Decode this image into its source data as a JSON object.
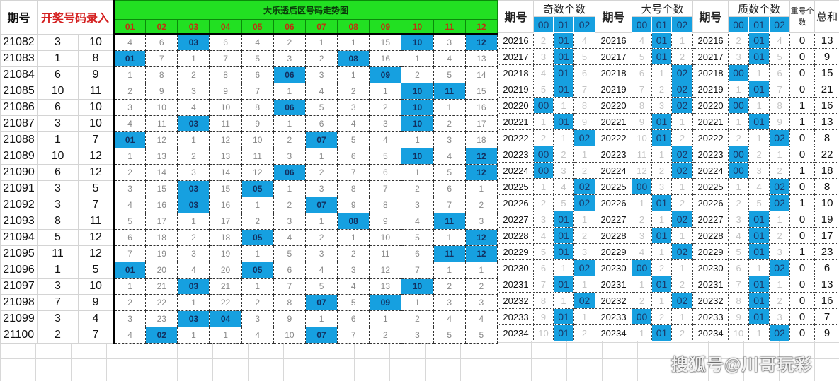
{
  "left": {
    "period_header": "期号",
    "draw_header": "开奖号码录入",
    "title": "大乐透后区号码走势图",
    "columns": [
      "01",
      "02",
      "03",
      "04",
      "05",
      "06",
      "07",
      "08",
      "09",
      "10",
      "11",
      "12"
    ],
    "rows": [
      {
        "period": "21082",
        "a": "3",
        "b": "10",
        "trend": [
          "4",
          "6",
          "03",
          "6",
          "4",
          "2",
          "1",
          "1",
          "15",
          "10",
          "3",
          "12"
        ]
      },
      {
        "period": "21083",
        "a": "1",
        "b": "8",
        "trend": [
          "01",
          "7",
          "1",
          "7",
          "5",
          "3",
          "2",
          "08",
          "16",
          "1",
          "4",
          "13"
        ]
      },
      {
        "period": "21084",
        "a": "6",
        "b": "9",
        "trend": [
          "1",
          "8",
          "2",
          "8",
          "6",
          "06",
          "3",
          "1",
          "09",
          "2",
          "5",
          "14"
        ]
      },
      {
        "period": "21085",
        "a": "10",
        "b": "11",
        "trend": [
          "2",
          "9",
          "3",
          "9",
          "7",
          "1",
          "4",
          "2",
          "1",
          "10",
          "11",
          "15"
        ]
      },
      {
        "period": "21086",
        "a": "6",
        "b": "10",
        "trend": [
          "3",
          "10",
          "4",
          "10",
          "8",
          "06",
          "5",
          "3",
          "2",
          "10",
          "1",
          "16"
        ]
      },
      {
        "period": "21087",
        "a": "3",
        "b": "10",
        "trend": [
          "4",
          "11",
          "03",
          "11",
          "9",
          "1",
          "6",
          "4",
          "3",
          "10",
          "2",
          "17"
        ]
      },
      {
        "period": "21088",
        "a": "1",
        "b": "7",
        "trend": [
          "01",
          "12",
          "1",
          "12",
          "10",
          "2",
          "07",
          "5",
          "4",
          "1",
          "3",
          "18"
        ]
      },
      {
        "period": "21089",
        "a": "10",
        "b": "12",
        "trend": [
          "1",
          "13",
          "2",
          "13",
          "11",
          "3",
          "1",
          "6",
          "5",
          "10",
          "4",
          "12"
        ]
      },
      {
        "period": "21090",
        "a": "6",
        "b": "12",
        "trend": [
          "2",
          "14",
          "3",
          "14",
          "12",
          "06",
          "2",
          "7",
          "6",
          "1",
          "5",
          "12"
        ]
      },
      {
        "period": "21091",
        "a": "3",
        "b": "5",
        "trend": [
          "3",
          "15",
          "03",
          "15",
          "05",
          "1",
          "3",
          "8",
          "7",
          "2",
          "6",
          "1"
        ]
      },
      {
        "period": "21092",
        "a": "3",
        "b": "7",
        "trend": [
          "4",
          "16",
          "03",
          "16",
          "1",
          "2",
          "07",
          "9",
          "8",
          "3",
          "7",
          "2"
        ]
      },
      {
        "period": "21093",
        "a": "8",
        "b": "11",
        "trend": [
          "5",
          "17",
          "1",
          "17",
          "2",
          "3",
          "1",
          "08",
          "9",
          "4",
          "11",
          "3"
        ]
      },
      {
        "period": "21094",
        "a": "5",
        "b": "12",
        "trend": [
          "6",
          "18",
          "2",
          "18",
          "05",
          "4",
          "2",
          "1",
          "10",
          "5",
          "1",
          "12"
        ]
      },
      {
        "period": "21095",
        "a": "11",
        "b": "12",
        "trend": [
          "7",
          "19",
          "3",
          "19",
          "1",
          "5",
          "3",
          "2",
          "11",
          "6",
          "11",
          "12"
        ]
      },
      {
        "period": "21096",
        "a": "1",
        "b": "5",
        "trend": [
          "01",
          "20",
          "4",
          "20",
          "05",
          "6",
          "4",
          "3",
          "12",
          "7",
          "1",
          "1"
        ]
      },
      {
        "period": "21097",
        "a": "3",
        "b": "10",
        "trend": [
          "1",
          "21",
          "03",
          "21",
          "1",
          "7",
          "5",
          "4",
          "13",
          "10",
          "2",
          "2"
        ]
      },
      {
        "period": "21098",
        "a": "7",
        "b": "9",
        "trend": [
          "2",
          "22",
          "1",
          "22",
          "2",
          "8",
          "07",
          "5",
          "09",
          "1",
          "3",
          "3"
        ]
      },
      {
        "period": "21099",
        "a": "3",
        "b": "4",
        "trend": [
          "3",
          "23",
          "03",
          "04",
          "3",
          "9",
          "1",
          "6",
          "1",
          "2",
          "4",
          "4"
        ]
      },
      {
        "period": "21100",
        "a": "2",
        "b": "7",
        "trend": [
          "4",
          "02",
          "1",
          "1",
          "4",
          "10",
          "07",
          "7",
          "2",
          "3",
          "5",
          "5"
        ]
      }
    ]
  },
  "right": {
    "period_header": "期号",
    "groups": [
      "奇数个数",
      "大号个数",
      "质数个数"
    ],
    "sub_columns": [
      "00",
      "01",
      "02"
    ],
    "repeat_header": "重号个数",
    "sum_header": "总和",
    "rows": [
      {
        "period": "20216",
        "odd": [
          "2",
          "01",
          "4"
        ],
        "big": [
          "4",
          "01",
          "1"
        ],
        "prime": [
          "2",
          "01",
          "4"
        ],
        "repeat": "0",
        "sum": "13"
      },
      {
        "period": "20217",
        "odd": [
          "3",
          "01",
          "5"
        ],
        "big": [
          "5",
          "01",
          "2"
        ],
        "prime": [
          "3",
          "01",
          "5"
        ],
        "repeat": "0",
        "sum": "9"
      },
      {
        "period": "20218",
        "odd": [
          "4",
          "01",
          "6"
        ],
        "big": [
          "6",
          "1",
          "02"
        ],
        "prime": [
          "00",
          "1",
          "6"
        ],
        "repeat": "0",
        "sum": "15"
      },
      {
        "period": "20219",
        "odd": [
          "5",
          "01",
          "7"
        ],
        "big": [
          "7",
          "2",
          "02"
        ],
        "prime": [
          "1",
          "01",
          "7"
        ],
        "repeat": "0",
        "sum": "21"
      },
      {
        "period": "20220",
        "odd": [
          "00",
          "1",
          "8"
        ],
        "big": [
          "8",
          "3",
          "02"
        ],
        "prime": [
          "00",
          "1",
          "8"
        ],
        "repeat": "1",
        "sum": "16"
      },
      {
        "period": "20221",
        "odd": [
          "1",
          "01",
          "9"
        ],
        "big": [
          "9",
          "01",
          "1"
        ],
        "prime": [
          "1",
          "01",
          "9"
        ],
        "repeat": "1",
        "sum": "13"
      },
      {
        "period": "20222",
        "odd": [
          "2",
          "1",
          "02"
        ],
        "big": [
          "10",
          "01",
          "2"
        ],
        "prime": [
          "2",
          "1",
          "02"
        ],
        "repeat": "0",
        "sum": "8"
      },
      {
        "period": "20223",
        "odd": [
          "00",
          "2",
          "1"
        ],
        "big": [
          "11",
          "1",
          "02"
        ],
        "prime": [
          "00",
          "2",
          "1"
        ],
        "repeat": "0",
        "sum": "22"
      },
      {
        "period": "20224",
        "odd": [
          "00",
          "3",
          "2"
        ],
        "big": [
          "12",
          "2",
          "02"
        ],
        "prime": [
          "00",
          "3",
          "2"
        ],
        "repeat": "1",
        "sum": "18"
      },
      {
        "period": "20225",
        "odd": [
          "1",
          "4",
          "02"
        ],
        "big": [
          "00",
          "3",
          "1"
        ],
        "prime": [
          "1",
          "4",
          "02"
        ],
        "repeat": "0",
        "sum": "8"
      },
      {
        "period": "20226",
        "odd": [
          "2",
          "5",
          "02"
        ],
        "big": [
          "1",
          "01",
          "2"
        ],
        "prime": [
          "2",
          "5",
          "02"
        ],
        "repeat": "1",
        "sum": "10"
      },
      {
        "period": "20227",
        "odd": [
          "3",
          "01",
          "1"
        ],
        "big": [
          "2",
          "1",
          "02"
        ],
        "prime": [
          "3",
          "01",
          "1"
        ],
        "repeat": "0",
        "sum": "19"
      },
      {
        "period": "20228",
        "odd": [
          "4",
          "01",
          "2"
        ],
        "big": [
          "3",
          "01",
          "1"
        ],
        "prime": [
          "4",
          "01",
          "2"
        ],
        "repeat": "0",
        "sum": "17"
      },
      {
        "period": "20229",
        "odd": [
          "5",
          "01",
          "3"
        ],
        "big": [
          "4",
          "1",
          "02"
        ],
        "prime": [
          "5",
          "01",
          "3"
        ],
        "repeat": "1",
        "sum": "23"
      },
      {
        "period": "20230",
        "odd": [
          "6",
          "1",
          "02"
        ],
        "big": [
          "00",
          "2",
          "1"
        ],
        "prime": [
          "6",
          "1",
          "02"
        ],
        "repeat": "0",
        "sum": "6"
      },
      {
        "period": "20231",
        "odd": [
          "7",
          "01",
          "1"
        ],
        "big": [
          "1",
          "01",
          "2"
        ],
        "prime": [
          "7",
          "01",
          "1"
        ],
        "repeat": "0",
        "sum": "13"
      },
      {
        "period": "20232",
        "odd": [
          "8",
          "1",
          "02"
        ],
        "big": [
          "2",
          "1",
          "02"
        ],
        "prime": [
          "8",
          "01",
          "2"
        ],
        "repeat": "0",
        "sum": "16"
      },
      {
        "period": "20233",
        "odd": [
          "9",
          "01",
          "1"
        ],
        "big": [
          "00",
          "2",
          "1"
        ],
        "prime": [
          "9",
          "01",
          "3"
        ],
        "repeat": "0",
        "sum": "7"
      },
      {
        "period": "20234",
        "odd": [
          "10",
          "01",
          "2"
        ],
        "big": [
          "1",
          "01",
          "2"
        ],
        "prime": [
          "10",
          "1",
          "02"
        ],
        "repeat": "0",
        "sum": "9"
      }
    ]
  },
  "watermark": "搜狐号@川哥玩彩",
  "colors": {
    "hit": "#16a0e0",
    "header_green": "#22e022",
    "header_red": "#d42020"
  }
}
